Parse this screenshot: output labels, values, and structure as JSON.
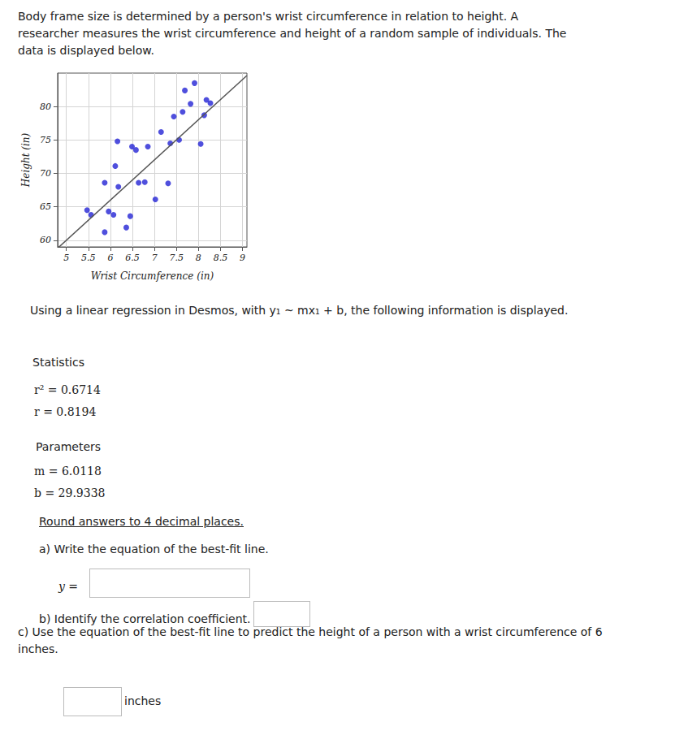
{
  "intro": "Body frame size is determined by a person's wrist circumference in relation to height. A researcher measures the wrist circumference and height of a random sample of individuals. The data is displayed below.",
  "chart_data": {
    "type": "scatter",
    "xlabel": "Wrist Circumference (in)",
    "ylabel": "Height (in)",
    "x": [
      7.91,
      7.69,
      8.18,
      8.27,
      7.82,
      7.64,
      7.44,
      8.13,
      7.15,
      7.56,
      7.36,
      8.05,
      6.85,
      6.16,
      6.49,
      6.58,
      6.11,
      5.87,
      6.18,
      6.64,
      6.78,
      7.31,
      7.02,
      5.47,
      5.56,
      5.96,
      6.07,
      6.45,
      6.36,
      5.87
    ],
    "values": [
      83.5,
      82.4,
      81.0,
      80.5,
      80.4,
      79.2,
      78.5,
      78.7,
      76.2,
      75.0,
      74.5,
      74.4,
      74.0,
      74.8,
      74.0,
      73.5,
      71.1,
      68.6,
      68.0,
      68.6,
      68.7,
      68.5,
      66.1,
      64.5,
      63.8,
      64.3,
      63.8,
      63.6,
      61.9,
      61.2
    ],
    "color": "#2323d4",
    "marker": "circle",
    "xlim": [
      4.8,
      9.1
    ],
    "xticks": [
      5,
      5.5,
      6,
      6.5,
      7,
      7.5,
      8,
      8.5,
      9
    ],
    "ylim": [
      59,
      85
    ],
    "yticks": [
      60,
      65,
      70,
      75,
      80
    ],
    "grid": true
  },
  "regression_text": "Using a linear regression in Desmos, with y₁ ~ mx₁ + b, the following information is displayed.",
  "statistics": {
    "heading": "Statistics",
    "items": [
      {
        "label": "r² =",
        "value": 0.6714
      },
      {
        "label": "r =",
        "value": 0.8194
      }
    ]
  },
  "parameters": {
    "heading": "Parameters",
    "items": [
      {
        "label": "m =",
        "value": 6.0118
      },
      {
        "label": "b =",
        "value": 29.9338
      }
    ]
  },
  "instructions": "Round answers to 4 decimal places.",
  "questions": [
    {
      "text": "a) Write the equation of the best-fit line.",
      "answer_prefix": "y ="
    },
    {
      "text": "b) Identify the correlation coefficient."
    },
    {
      "text": "c) Use the equation of the best-fit line to predict the height of a person with a wrist circumference of 6 inches.",
      "answer_suffix": "inches"
    }
  ]
}
